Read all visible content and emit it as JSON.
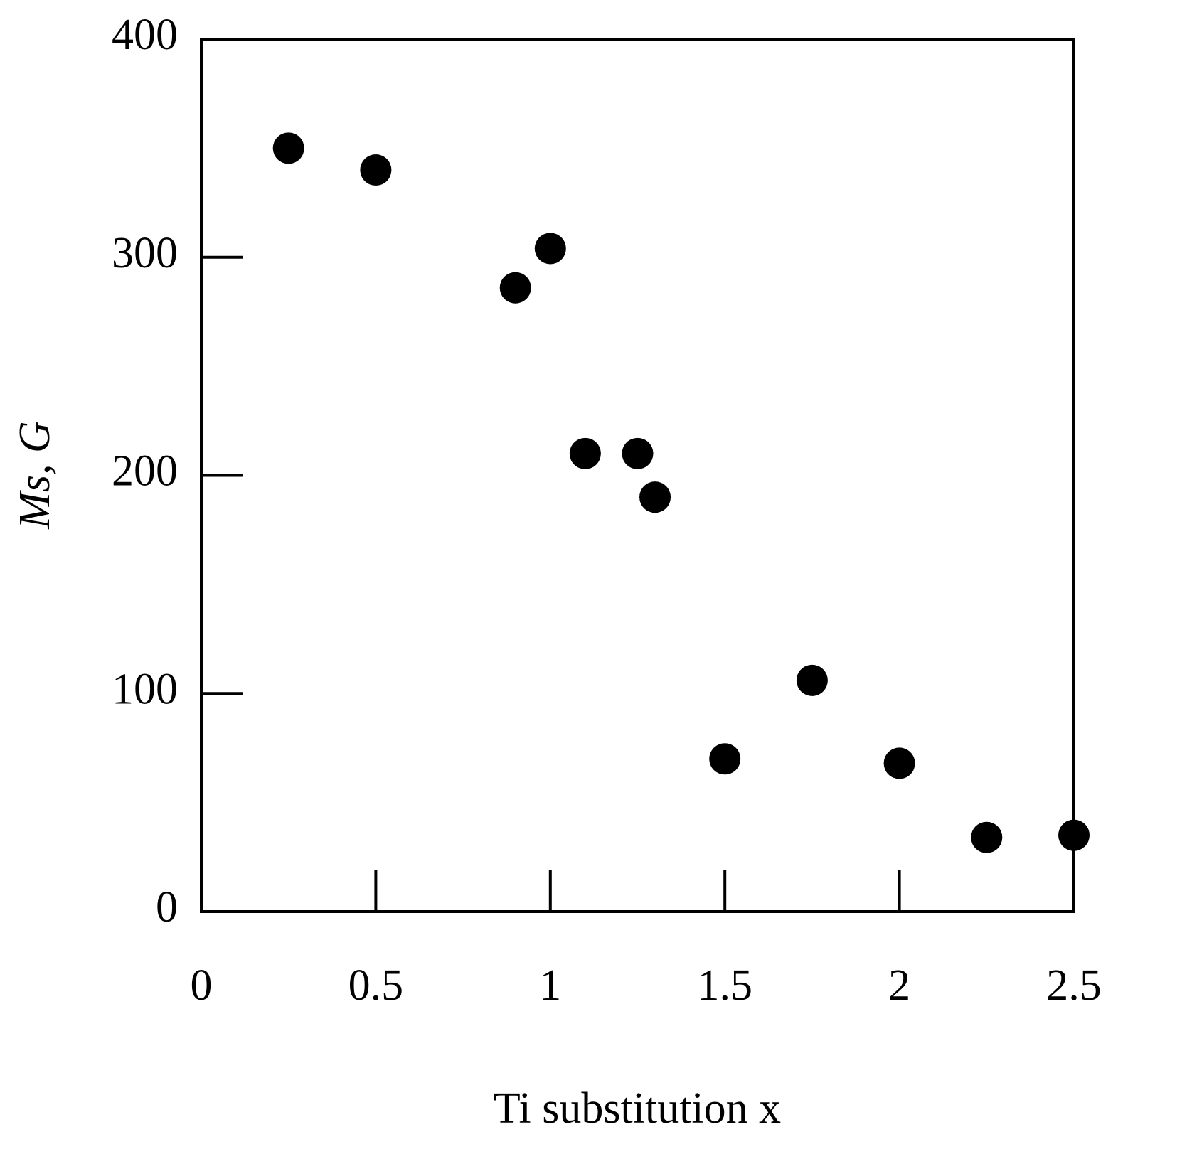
{
  "chart_data": {
    "type": "scatter",
    "x_label": "Ti substitution x",
    "y_label": "Ms, G",
    "x": [
      0.25,
      0.5,
      0.9,
      1.0,
      1.1,
      1.25,
      1.3,
      1.5,
      1.75,
      2.0,
      2.25,
      2.5
    ],
    "values": [
      350,
      340,
      286,
      304,
      210,
      210,
      190,
      70,
      106,
      68,
      34,
      35
    ],
    "color": "#000000",
    "xlim": [
      0,
      2.5
    ],
    "xticks": [
      0,
      0.5,
      1,
      1.5,
      2,
      2.5
    ],
    "ylim": [
      0,
      400
    ],
    "yticks": [
      0,
      100,
      200,
      300,
      400
    ]
  }
}
